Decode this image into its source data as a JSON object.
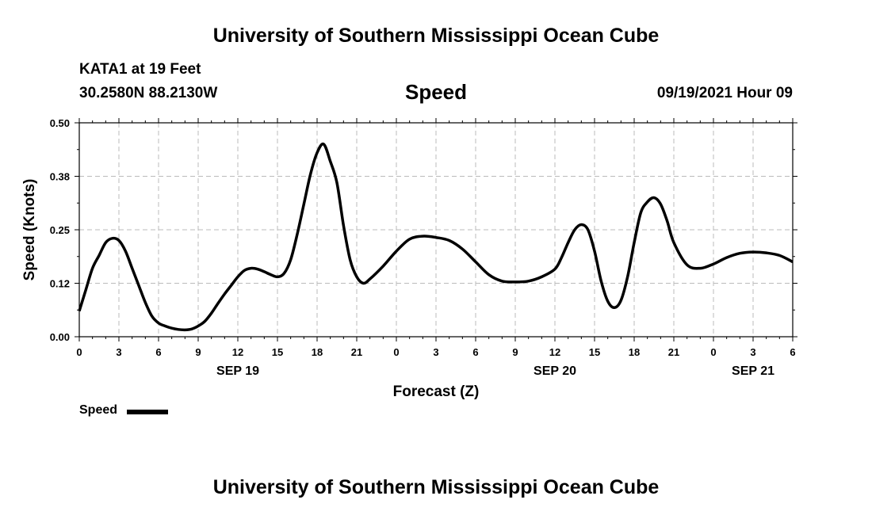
{
  "header": {
    "title": "University of Southern Mississippi Ocean Cube",
    "station": "KATA1 at 19 Feet",
    "location": "30.2580N  88.2130W",
    "variable": "Speed",
    "datetime": "09/19/2021 Hour 09"
  },
  "footer": {
    "title": "University of Southern Mississippi Ocean Cube"
  },
  "chart_data": {
    "type": "line",
    "xlabel": "Forecast (Z)",
    "ylabel": "Speed (Knots)",
    "ylim": [
      0,
      0.5
    ],
    "xlim": [
      0,
      54
    ],
    "x_units": "hours since 2021-09-19 00Z",
    "y_ticks": [
      "0.00",
      "0.12",
      "0.25",
      "0.38",
      "0.50"
    ],
    "x_ticks": [
      "0",
      "3",
      "6",
      "9",
      "12",
      "15",
      "18",
      "21",
      "0",
      "3",
      "6",
      "9",
      "12",
      "15",
      "18",
      "21",
      "0",
      "3",
      "6"
    ],
    "date_labels": [
      {
        "label": "SEP 19",
        "hour": 12
      },
      {
        "label": "SEP 20",
        "hour": 36
      },
      {
        "label": "SEP 21",
        "hour": 51
      }
    ],
    "grid": true,
    "legend": {
      "position": "bottom-left",
      "label": "Speed"
    },
    "series": [
      {
        "name": "Speed",
        "color": "#000000",
        "x": [
          0,
          0.5,
          1,
          1.5,
          2,
          2.5,
          3,
          3.5,
          4,
          4.5,
          5,
          5.5,
          6,
          6.5,
          7,
          7.5,
          8,
          8.5,
          9,
          9.5,
          10,
          10.5,
          11,
          11.5,
          12,
          12.5,
          13,
          13.5,
          14,
          14.5,
          15,
          15.5,
          16,
          16.5,
          17,
          17.5,
          18,
          18.5,
          19,
          19.5,
          20,
          20.5,
          21,
          21.5,
          22,
          23,
          24,
          25,
          26,
          27,
          28,
          29,
          30,
          31,
          32,
          33,
          34,
          35,
          36,
          36.5,
          37,
          37.5,
          38,
          38.5,
          39,
          39.5,
          40,
          40.5,
          41,
          41.5,
          42,
          42.5,
          43,
          43.5,
          44,
          44.5,
          45,
          46,
          47,
          48,
          49,
          50,
          51,
          52,
          53,
          54
        ],
        "values": [
          0.06,
          0.11,
          0.16,
          0.19,
          0.22,
          0.23,
          0.225,
          0.2,
          0.16,
          0.12,
          0.08,
          0.048,
          0.032,
          0.025,
          0.02,
          0.017,
          0.016,
          0.018,
          0.025,
          0.036,
          0.055,
          0.078,
          0.1,
          0.12,
          0.14,
          0.155,
          0.16,
          0.158,
          0.152,
          0.145,
          0.14,
          0.148,
          0.18,
          0.24,
          0.31,
          0.38,
          0.43,
          0.45,
          0.41,
          0.36,
          0.26,
          0.18,
          0.14,
          0.125,
          0.135,
          0.165,
          0.2,
          0.228,
          0.235,
          0.232,
          0.225,
          0.205,
          0.175,
          0.145,
          0.13,
          0.128,
          0.13,
          0.14,
          0.158,
          0.185,
          0.22,
          0.25,
          0.262,
          0.25,
          0.2,
          0.13,
          0.083,
          0.068,
          0.085,
          0.14,
          0.22,
          0.29,
          0.315,
          0.325,
          0.31,
          0.27,
          0.22,
          0.168,
          0.16,
          0.17,
          0.185,
          0.195,
          0.198,
          0.196,
          0.19,
          0.175
        ]
      }
    ]
  }
}
